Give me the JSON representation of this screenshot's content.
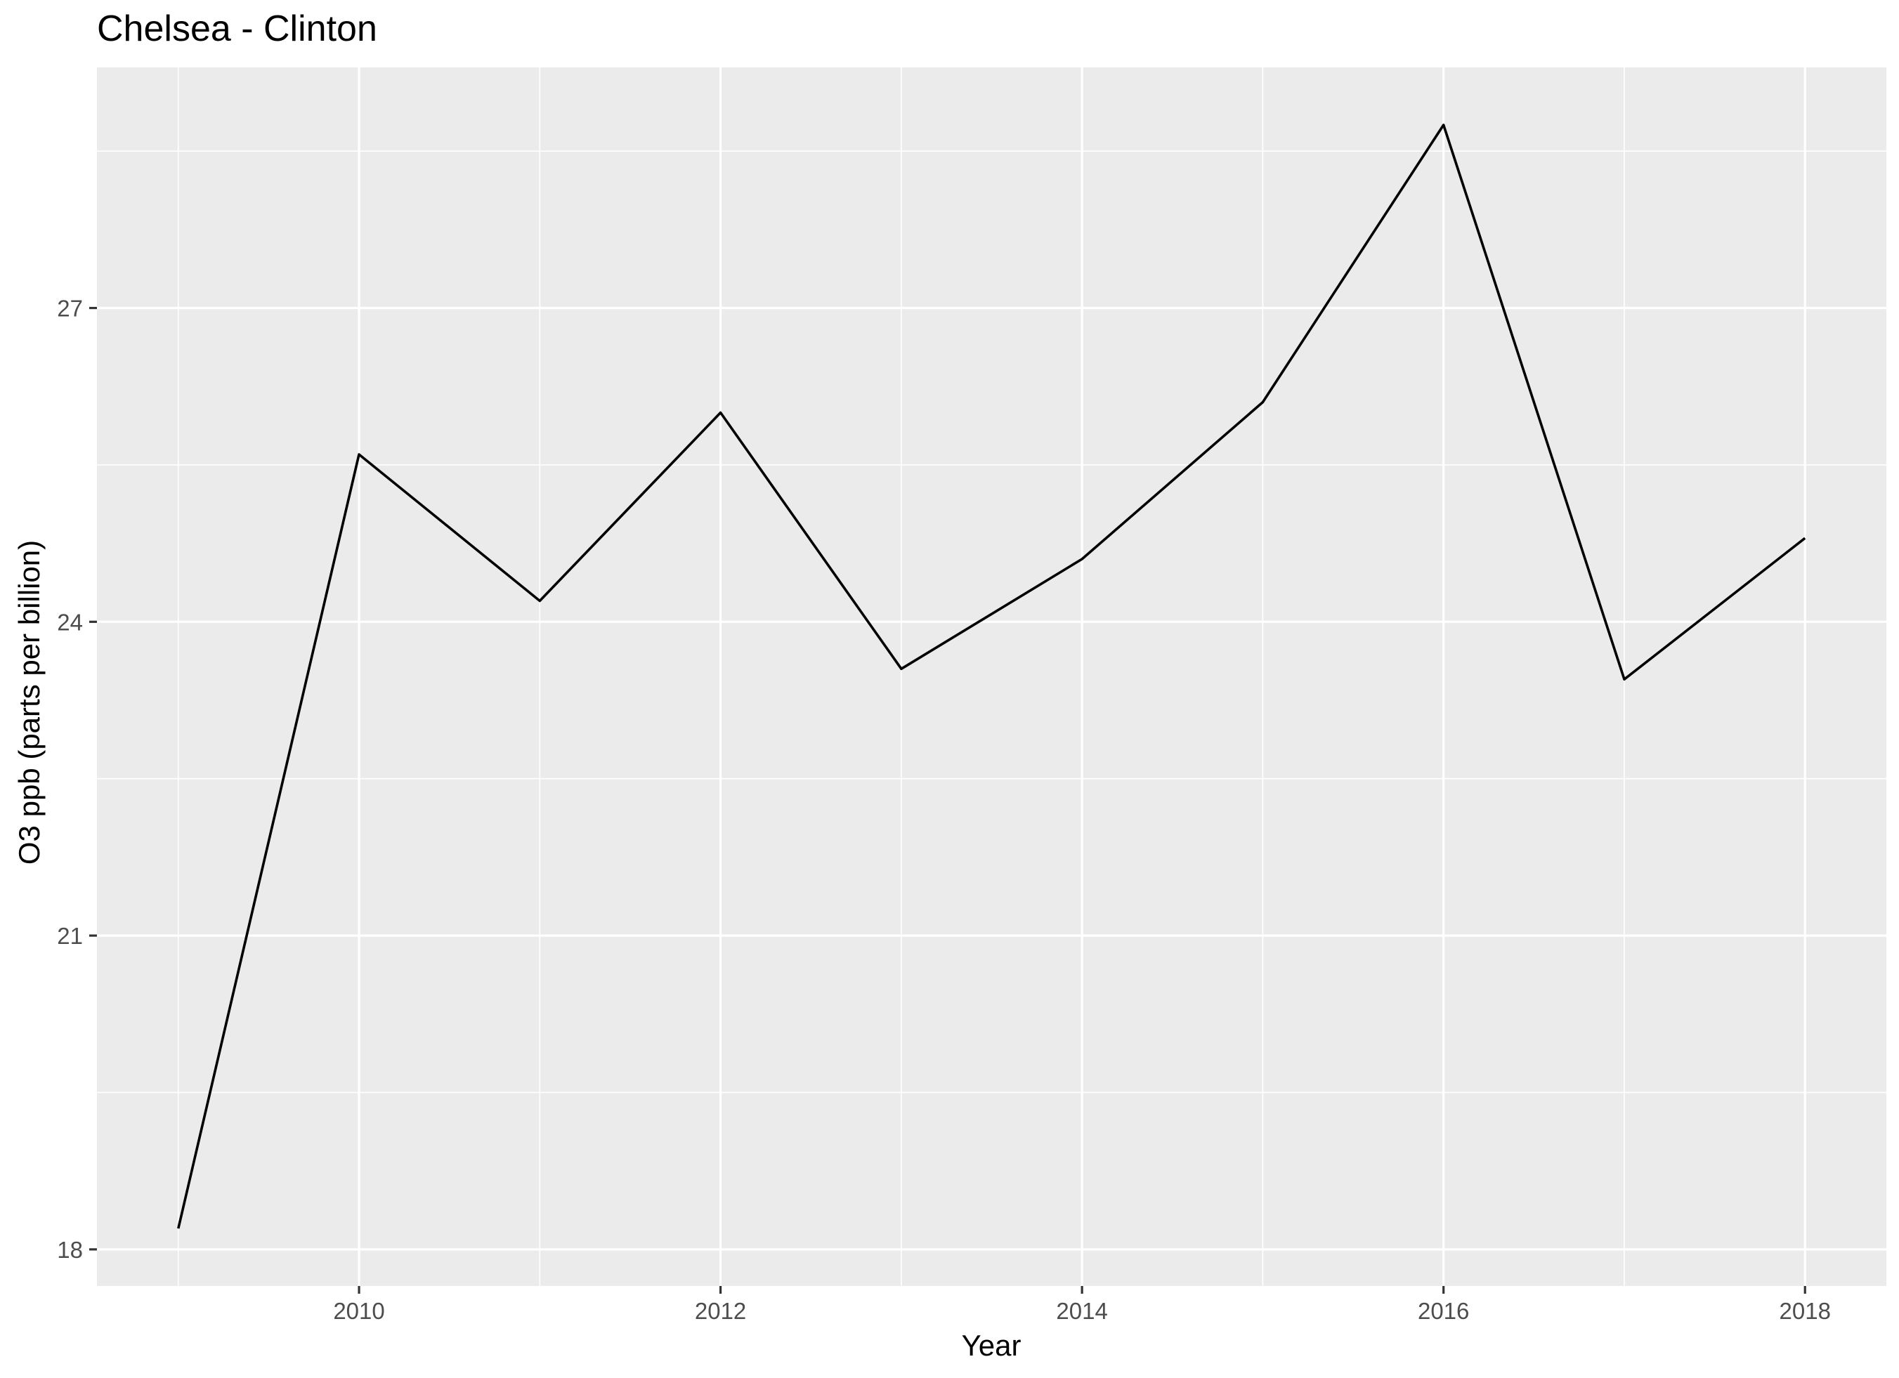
{
  "chart_data": {
    "type": "line",
    "title": "Chelsea - Clinton",
    "xlabel": "Year",
    "ylabel": "O3 ppb (parts per billion)",
    "x": [
      2009,
      2010,
      2011,
      2012,
      2013,
      2014,
      2015,
      2016,
      2017,
      2018
    ],
    "series": [
      {
        "values": [
          18.2,
          25.6,
          24.2,
          26.0,
          23.55,
          24.6,
          26.1,
          28.75,
          23.45,
          24.8
        ]
      }
    ],
    "xlim": [
      2008.55,
      2018.45
    ],
    "ylim": [
      17.65,
      29.3
    ],
    "x_ticks": [
      2010,
      2012,
      2014,
      2016,
      2018
    ],
    "x_tick_labels": [
      "2010",
      "2012",
      "2014",
      "2016",
      "2018"
    ],
    "y_ticks": [
      18,
      21,
      24,
      27
    ],
    "y_tick_labels": [
      "18",
      "21",
      "24",
      "27"
    ],
    "x_minor_ticks": [
      2009,
      2011,
      2013,
      2015,
      2017
    ],
    "y_minor_ticks": [
      19.5,
      22.5,
      25.5,
      28.5
    ],
    "grid": true,
    "legend": "none",
    "colors": {
      "panel": "#ebebeb",
      "grid": "#ffffff",
      "line": "#000000",
      "tick_text": "#4d4d4d"
    }
  }
}
